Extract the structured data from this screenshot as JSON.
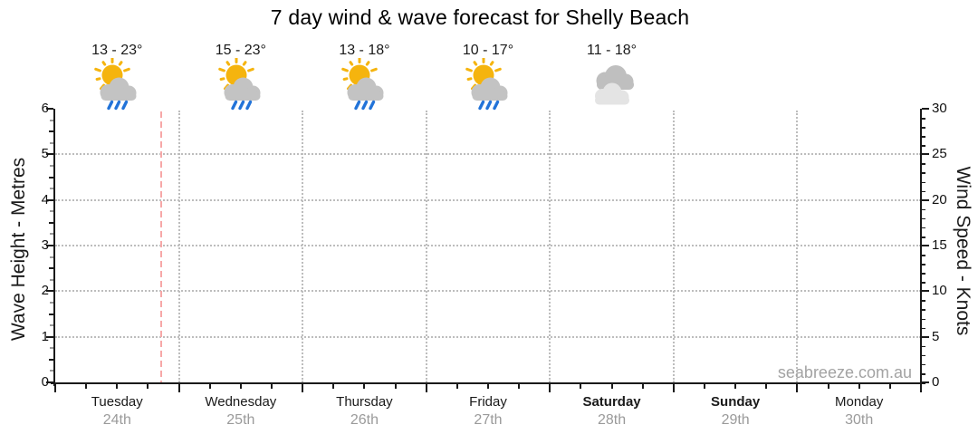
{
  "page": {
    "watermark": "seabreeze.com.au"
  },
  "chart_data": {
    "type": "line",
    "title": "7 day wind & wave forecast for Shelly Beach",
    "series": [],
    "no_data_plotted": true,
    "legend": false,
    "grid": {
      "horizontal": true,
      "vertical": true,
      "style": "dotted"
    },
    "left_axis": {
      "label": "Wave Height - Metres",
      "min": 0,
      "max": 6,
      "major_tick_step": 1,
      "minor_tick_step": 0.25,
      "tick_labels": [
        "0",
        "1",
        "2",
        "3",
        "4",
        "5",
        "6"
      ]
    },
    "right_axis": {
      "label": "Wind Speed - Knots",
      "min": 0,
      "max": 30,
      "major_tick_step": 5,
      "minor_tick_step": 1,
      "tick_labels": [
        "0",
        "5",
        "10",
        "15",
        "20",
        "25",
        "30"
      ]
    },
    "x_axis": {
      "minor_ticks_per_day": 4
    },
    "days": [
      {
        "name": "Tuesday",
        "date": "24th",
        "bold": false,
        "temp_range": "13 - 23°",
        "icon": "sun-cloud-rain"
      },
      {
        "name": "Wednesday",
        "date": "25th",
        "bold": false,
        "temp_range": "15 - 23°",
        "icon": "sun-cloud-rain"
      },
      {
        "name": "Thursday",
        "date": "26th",
        "bold": false,
        "temp_range": "13 - 18°",
        "icon": "sun-cloud-rain"
      },
      {
        "name": "Friday",
        "date": "27th",
        "bold": false,
        "temp_range": "10 - 17°",
        "icon": "sun-cloud-rain"
      },
      {
        "name": "Saturday",
        "date": "28th",
        "bold": true,
        "temp_range": "11 - 18°",
        "icon": "cloudy"
      },
      {
        "name": "Sunday",
        "date": "29th",
        "bold": true,
        "temp_range": null,
        "icon": null
      },
      {
        "name": "Monday",
        "date": "30th",
        "bold": false,
        "temp_range": null,
        "icon": null
      }
    ],
    "now_marker": {
      "day": "Tuesday",
      "day_fraction": 0.86,
      "style": "dashed",
      "color": "#f7a8a8"
    }
  },
  "colors": {
    "sun": "#f5b40e",
    "cloud_gray": "#c3c3c3",
    "cloud_dark": "#bfbfbf",
    "cloud_light": "#e4e4e4",
    "rain_blue": "#2273d8",
    "grid_gray": "#bdbdbd",
    "axis_black": "#1a1a1a",
    "minor_tick_gray": "#9a9a9a",
    "date_gray": "#9a9a9a",
    "watermark_gray": "#a3a3a3",
    "now_marker_pink": "#f7a8a8"
  }
}
